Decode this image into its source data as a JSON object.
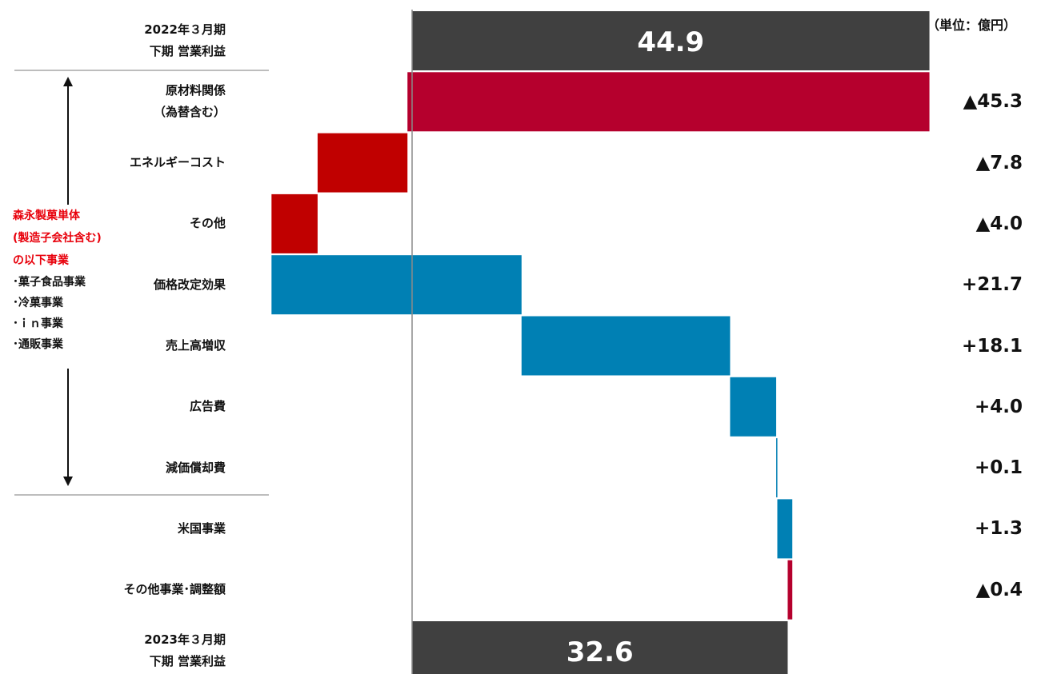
{
  "chart_data": {
    "type": "bar",
    "subtype": "waterfall",
    "unit_label": "（単位：億円）",
    "start": {
      "label_lines": [
        "2022年３月期",
        "下期 営業利益"
      ],
      "value": 44.9,
      "value_label": "44.9"
    },
    "steps": [
      {
        "label_lines": [
          "原材料関係",
          "（為替含む）"
        ],
        "value": -45.3,
        "value_label": "▲45.3"
      },
      {
        "label_lines": [
          "エネルギーコスト"
        ],
        "value": -7.8,
        "value_label": "▲7.8"
      },
      {
        "label_lines": [
          "その他"
        ],
        "value": -4.0,
        "value_label": "▲4.0"
      },
      {
        "label_lines": [
          "価格改定効果"
        ],
        "value": 21.7,
        "value_label": "+21.7"
      },
      {
        "label_lines": [
          "売上高増収"
        ],
        "value": 18.1,
        "value_label": "+18.1"
      },
      {
        "label_lines": [
          "広告費"
        ],
        "value": 4.0,
        "value_label": "+4.0"
      },
      {
        "label_lines": [
          "減価償却費"
        ],
        "value": 0.1,
        "value_label": "+0.1"
      },
      {
        "label_lines": [
          "米国事業"
        ],
        "value": 1.3,
        "value_label": "+1.3"
      },
      {
        "label_lines": [
          "その他事業･調整額"
        ],
        "value": -0.4,
        "value_label": "▲0.4"
      }
    ],
    "end": {
      "label_lines": [
        "2023年３月期",
        "下期 営業利益"
      ],
      "value": 32.6,
      "value_label": "32.6"
    },
    "grid": false,
    "axis_range": [
      -12.2,
      45.3
    ]
  },
  "side_note": {
    "red_lines": [
      "森永製菓単体",
      "(製造子会社含む)",
      "の以下事業"
    ],
    "items": [
      "･菓子食品事業",
      "･冷菓事業",
      "･ｉｎ事業",
      "･通販事業"
    ]
  },
  "colors": {
    "total": "#404040",
    "decrease_large": "#b5002d",
    "decrease": "#c00000",
    "increase": "#0080b4",
    "zero_line": "#8a8a8a",
    "total_text": "#ffffff"
  }
}
